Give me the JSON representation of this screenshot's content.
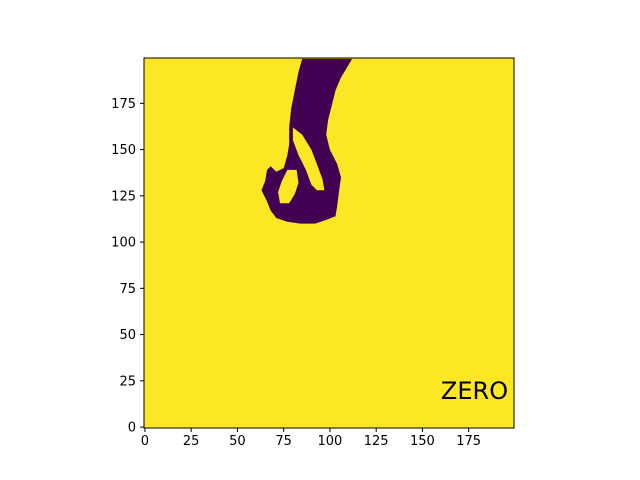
{
  "chart_data": {
    "type": "image",
    "title": "",
    "xlabel": "",
    "ylabel": "",
    "image_shape": [
      200,
      200
    ],
    "colormap": "viridis",
    "value_range": [
      0,
      1
    ],
    "background_value": 1,
    "foreground_value": 0,
    "xlim": [
      -0.5,
      199.5
    ],
    "ylim": [
      199.5,
      -0.5
    ],
    "x_ticks": [
      0,
      25,
      50,
      75,
      100,
      125,
      150,
      175
    ],
    "y_ticks": [
      0,
      25,
      50,
      75,
      100,
      125,
      150,
      175
    ],
    "annotation": {
      "text": "ZERO",
      "x": 160,
      "y": 20
    },
    "colors": {
      "background": "#fde725",
      "foreground": "#440154"
    },
    "hand_outer_polygon": [
      [
        71,
        113
      ],
      [
        77,
        111
      ],
      [
        84,
        110
      ],
      [
        92,
        110
      ],
      [
        98,
        112
      ],
      [
        103,
        114
      ],
      [
        104,
        120
      ],
      [
        105,
        128
      ],
      [
        106,
        135
      ],
      [
        104,
        142
      ],
      [
        100,
        150
      ],
      [
        98,
        158
      ],
      [
        99,
        166
      ],
      [
        101,
        174
      ],
      [
        103,
        182
      ],
      [
        106,
        189
      ],
      [
        109,
        194
      ],
      [
        112,
        199
      ],
      [
        85,
        199
      ],
      [
        83,
        192
      ],
      [
        81,
        182
      ],
      [
        79,
        172
      ],
      [
        78,
        162
      ],
      [
        78,
        153
      ],
      [
        77,
        147
      ],
      [
        75,
        140
      ],
      [
        71,
        138
      ],
      [
        68,
        141
      ],
      [
        66,
        139
      ],
      [
        65,
        133
      ],
      [
        63,
        128
      ],
      [
        66,
        122
      ],
      [
        68,
        117
      ]
    ],
    "hole_upper_polygon": [
      [
        73,
        121
      ],
      [
        78,
        121
      ],
      [
        81,
        126
      ],
      [
        83,
        132
      ],
      [
        82,
        139
      ],
      [
        77,
        139
      ],
      [
        74,
        133
      ],
      [
        72,
        127
      ]
    ],
    "hole_lower_polygon": [
      [
        87,
        139
      ],
      [
        90,
        131
      ],
      [
        93,
        128
      ],
      [
        97,
        128
      ],
      [
        96,
        134
      ],
      [
        93,
        142
      ],
      [
        90,
        150
      ],
      [
        85,
        158
      ],
      [
        80,
        162
      ],
      [
        80,
        155
      ],
      [
        83,
        147
      ]
    ],
    "notch_left_polygon": [
      [
        68,
        153
      ],
      [
        73,
        150
      ],
      [
        77,
        150
      ],
      [
        78,
        155
      ],
      [
        75,
        158
      ],
      [
        70,
        156
      ]
    ]
  }
}
